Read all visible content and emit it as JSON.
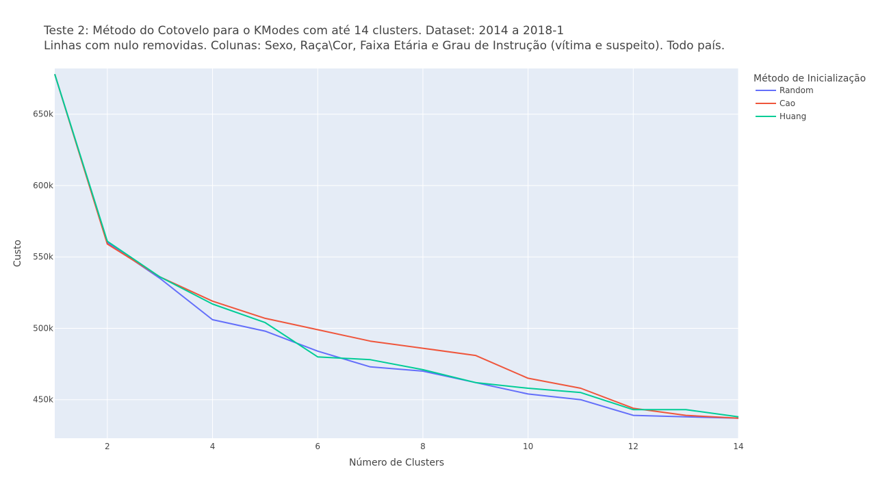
{
  "chart_data": {
    "type": "line",
    "title": "Teste 2: Método do Cotovelo para o KModes com até 14 clusters. Dataset: 2014 a 2018-1",
    "subtitle": "Linhas com nulo removidas. Colunas: Sexo, Raça\\Cor, Faixa Etária e Grau de Instrução (vítima e suspeito). Todo país.",
    "xlabel": "Número de Clusters",
    "ylabel": "Custo",
    "xlim": [
      1,
      14
    ],
    "ylim": [
      423000,
      682000
    ],
    "x_ticks": [
      2,
      4,
      6,
      8,
      10,
      12,
      14
    ],
    "y_ticks": [
      450000,
      500000,
      550000,
      600000,
      650000
    ],
    "y_tick_labels": [
      "450k",
      "500k",
      "550k",
      "600k",
      "650k"
    ],
    "x": [
      1,
      2,
      3,
      4,
      5,
      6,
      7,
      8,
      9,
      10,
      11,
      12,
      13,
      14
    ],
    "legend_title": "Método de Inicialização",
    "legend_position": "top-right, outside plot",
    "grid": true,
    "background_color": "#e5ecf6",
    "series": [
      {
        "name": "Random",
        "color": "#636efa",
        "values": [
          678000,
          560000,
          535000,
          506000,
          498000,
          484000,
          473000,
          470000,
          462000,
          454000,
          450000,
          439000,
          438000,
          437000
        ]
      },
      {
        "name": "Cao",
        "color": "#ef553b",
        "values": [
          678000,
          559000,
          536000,
          519000,
          507000,
          499000,
          491000,
          486000,
          481000,
          465000,
          458000,
          444000,
          439000,
          437000
        ]
      },
      {
        "name": "Huang",
        "color": "#00cc96",
        "values": [
          678000,
          561000,
          536000,
          517000,
          504000,
          480000,
          478000,
          471000,
          462000,
          458000,
          455000,
          443000,
          443000,
          438000
        ]
      }
    ]
  }
}
